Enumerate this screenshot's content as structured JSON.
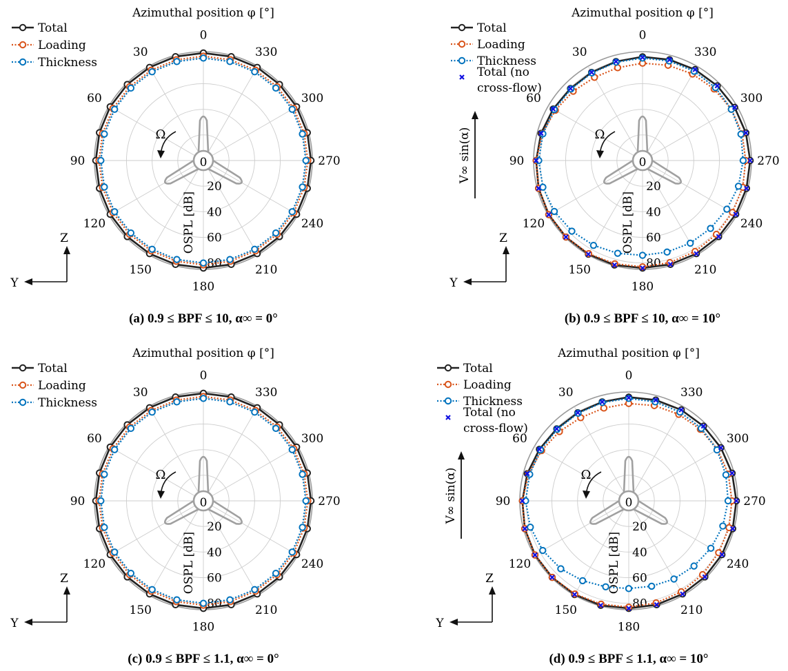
{
  "common": {
    "azimuth_title": "Azimuthal position φ [°]",
    "radial_label": "OSPL [dB]",
    "omega_label": "Ω",
    "axis_y": "Y",
    "axis_z": "Z",
    "flow_label": "V∞ sin(α)",
    "angle_ticks": [
      0,
      30,
      60,
      90,
      120,
      150,
      180,
      210,
      240,
      270,
      300,
      330
    ],
    "radial_ticks": [
      0,
      20,
      40,
      60,
      80
    ],
    "rlim": [
      0,
      85
    ],
    "colors": {
      "total": "#222222",
      "loading": "#D95319",
      "thickness": "#0072BD",
      "noflow": "#1010E0",
      "grid": "#CCCCCC",
      "blade": "#A0A0A0"
    }
  },
  "chart_data": [
    {
      "type": "polar",
      "caption": "(a) 0.9 ≤ BPF ≤ 10, α∞ = 0°",
      "legend": [
        "Total",
        "Loading",
        "Thickness"
      ],
      "legend_position": "top-left",
      "series": [
        {
          "name": "Total",
          "theta": [
            0,
            15,
            30,
            45,
            60,
            75,
            90,
            105,
            120,
            135,
            150,
            165,
            180,
            195,
            210,
            225,
            240,
            255,
            270,
            285,
            300,
            315,
            330,
            345
          ],
          "r": [
            84,
            84,
            84,
            84,
            84,
            84,
            84,
            84,
            84,
            84,
            84,
            84,
            84,
            84,
            84,
            84,
            84,
            84,
            84,
            84,
            84,
            84,
            84,
            84
          ]
        },
        {
          "name": "Loading",
          "theta": [
            0,
            15,
            30,
            45,
            60,
            75,
            90,
            105,
            120,
            135,
            150,
            165,
            180,
            195,
            210,
            225,
            240,
            255,
            270,
            285,
            300,
            315,
            330,
            345
          ],
          "r": [
            81.5,
            81.5,
            81.5,
            81.5,
            81.5,
            81.5,
            81.5,
            81.5,
            81.5,
            81.5,
            81.5,
            81.5,
            81.5,
            81.5,
            81.5,
            81.5,
            81.5,
            81.5,
            81.5,
            81.5,
            81.5,
            81.5,
            81.5,
            81.5
          ]
        },
        {
          "name": "Thickness",
          "theta": [
            0,
            15,
            30,
            45,
            60,
            75,
            90,
            105,
            120,
            135,
            150,
            165,
            180,
            195,
            210,
            225,
            240,
            255,
            270,
            285,
            300,
            315,
            330,
            345
          ],
          "r": [
            80,
            80,
            80,
            80,
            80,
            80,
            80,
            80,
            80,
            80,
            80,
            80,
            80,
            80,
            80,
            80,
            80,
            80,
            80,
            80,
            80,
            80,
            80,
            80
          ]
        }
      ]
    },
    {
      "type": "polar",
      "caption": "(b) 0.9 ≤ BPF ≤ 10, α∞ = 10°",
      "legend": [
        "Total",
        "Loading",
        "Thickness",
        "Total (no cross-flow)"
      ],
      "legend_position": "top-left",
      "flow_arrow": true,
      "series": [
        {
          "name": "Total",
          "theta": [
            0,
            15,
            30,
            45,
            60,
            75,
            90,
            105,
            120,
            135,
            150,
            165,
            180,
            195,
            210,
            225,
            240,
            255,
            270,
            285,
            300,
            315,
            330,
            345
          ],
          "r": [
            81,
            80,
            79.5,
            79.5,
            80.5,
            82,
            83,
            84,
            84.5,
            84.5,
            84.5,
            84.5,
            84,
            84,
            84,
            84,
            84,
            84,
            84,
            83.5,
            83,
            82.5,
            82,
            81.5
          ]
        },
        {
          "name": "Loading",
          "theta": [
            0,
            15,
            30,
            45,
            60,
            75,
            90,
            105,
            120,
            135,
            150,
            165,
            180,
            195,
            210,
            225,
            240,
            255,
            270,
            285,
            300,
            315,
            330,
            345
          ],
          "r": [
            76,
            75,
            75,
            76.5,
            78.5,
            81,
            83,
            84,
            84.5,
            84.5,
            84,
            83.5,
            83,
            82.5,
            82,
            81.5,
            81,
            81,
            80.5,
            80.5,
            80,
            79,
            78,
            77
          ]
        },
        {
          "name": "Thickness",
          "theta": [
            0,
            15,
            30,
            45,
            60,
            75,
            90,
            105,
            120,
            135,
            150,
            165,
            180,
            195,
            210,
            225,
            240,
            255,
            270,
            285,
            300,
            315,
            330,
            345
          ],
          "r": [
            80,
            79.5,
            79,
            79,
            79.5,
            80.5,
            81,
            80.5,
            79.5,
            78,
            76.5,
            75,
            74,
            74,
            74.5,
            75,
            76,
            77.5,
            78.5,
            79.5,
            80,
            80.5,
            80.5,
            80.5
          ]
        },
        {
          "name": "Total (no cross-flow)",
          "theta": [
            0,
            15,
            30,
            45,
            60,
            75,
            90,
            105,
            120,
            135,
            150,
            165,
            180,
            195,
            210,
            225,
            240,
            255,
            270,
            285,
            300,
            315,
            330,
            345
          ],
          "r": [
            80.5,
            80,
            79.5,
            79.5,
            80.5,
            82,
            83,
            84,
            84.5,
            84.5,
            84.5,
            84.5,
            84,
            84,
            84,
            84,
            84,
            84,
            84,
            83.5,
            83,
            82.5,
            82,
            81.5
          ]
        }
      ]
    },
    {
      "type": "polar",
      "caption": "(c) 0.9 ≤ BPF ≤ 1.1, α∞ = 0°",
      "legend": [
        "Total",
        "Loading",
        "Thickness"
      ],
      "legend_position": "top-left",
      "series": [
        {
          "name": "Total",
          "theta": [
            0,
            15,
            30,
            45,
            60,
            75,
            90,
            105,
            120,
            135,
            150,
            165,
            180,
            195,
            210,
            225,
            240,
            255,
            270,
            285,
            300,
            315,
            330,
            345
          ],
          "r": [
            84,
            84,
            84,
            84,
            84,
            84,
            84,
            84,
            84,
            84,
            84,
            84,
            84,
            84,
            84,
            84,
            84,
            84,
            84,
            84,
            84,
            84,
            84,
            84
          ]
        },
        {
          "name": "Loading",
          "theta": [
            0,
            15,
            30,
            45,
            60,
            75,
            90,
            105,
            120,
            135,
            150,
            165,
            180,
            195,
            210,
            225,
            240,
            255,
            270,
            285,
            300,
            315,
            330,
            345
          ],
          "r": [
            81.5,
            81.5,
            81.5,
            81.5,
            81.5,
            81.5,
            81.5,
            81.5,
            81.5,
            81.5,
            81.5,
            81.5,
            81.5,
            81.5,
            81.5,
            81.5,
            81.5,
            81.5,
            81.5,
            81.5,
            81.5,
            81.5,
            81.5,
            81.5
          ]
        },
        {
          "name": "Thickness",
          "theta": [
            0,
            15,
            30,
            45,
            60,
            75,
            90,
            105,
            120,
            135,
            150,
            165,
            180,
            195,
            210,
            225,
            240,
            255,
            270,
            285,
            300,
            315,
            330,
            345
          ],
          "r": [
            80,
            80,
            80,
            80,
            80,
            80,
            80,
            80,
            80,
            80,
            80,
            80,
            80,
            80,
            80,
            80,
            80,
            80,
            80,
            80,
            80,
            80,
            80,
            80
          ]
        }
      ]
    },
    {
      "type": "polar",
      "caption": "(d) 0.9 ≤ BPF ≤ 1.1, α∞ = 10°",
      "legend": [
        "Total",
        "Loading",
        "Thickness",
        "Total (no cross-flow)"
      ],
      "legend_position": "top-left",
      "flow_arrow": true,
      "series": [
        {
          "name": "Total",
          "theta": [
            0,
            15,
            30,
            45,
            60,
            75,
            90,
            105,
            120,
            135,
            150,
            165,
            180,
            195,
            210,
            225,
            240,
            255,
            270,
            285,
            300,
            315,
            330,
            345
          ],
          "r": [
            81,
            80,
            79.5,
            79.5,
            80.5,
            82,
            83,
            84,
            84.5,
            84.5,
            84.5,
            84.5,
            84,
            84,
            84,
            84,
            84,
            84,
            84,
            83.5,
            83,
            82.5,
            82,
            81.5
          ]
        },
        {
          "name": "Loading",
          "theta": [
            0,
            15,
            30,
            45,
            60,
            75,
            90,
            105,
            120,
            135,
            150,
            165,
            180,
            195,
            210,
            225,
            240,
            255,
            270,
            285,
            300,
            315,
            330,
            345
          ],
          "r": [
            76,
            75,
            75,
            76.5,
            78.5,
            81,
            83,
            84,
            84.5,
            84.5,
            84,
            83.5,
            83,
            82.5,
            82,
            81.5,
            81,
            81,
            80.5,
            80.5,
            80,
            79,
            78,
            77
          ]
        },
        {
          "name": "Thickness",
          "theta": [
            0,
            15,
            30,
            45,
            60,
            75,
            90,
            105,
            120,
            135,
            150,
            165,
            180,
            195,
            210,
            225,
            240,
            255,
            270,
            285,
            300,
            315,
            330,
            345
          ],
          "r": [
            80,
            79.5,
            79,
            79,
            79.5,
            80,
            80.5,
            79.5,
            77.5,
            75,
            72,
            69.5,
            68.5,
            69,
            70.5,
            72,
            74,
            76,
            77.5,
            78.5,
            79.5,
            80,
            80,
            80
          ]
        },
        {
          "name": "Total (no cross-flow)",
          "theta": [
            0,
            15,
            30,
            45,
            60,
            75,
            90,
            105,
            120,
            135,
            150,
            165,
            180,
            195,
            210,
            225,
            240,
            255,
            270,
            285,
            300,
            315,
            330,
            345
          ],
          "r": [
            80.5,
            80,
            79.5,
            79.5,
            80.5,
            82,
            83,
            84,
            84.5,
            84.5,
            84.5,
            84.5,
            84,
            84,
            84,
            84,
            84,
            84,
            84,
            83.5,
            83,
            82.5,
            82,
            81.5
          ]
        }
      ]
    }
  ]
}
